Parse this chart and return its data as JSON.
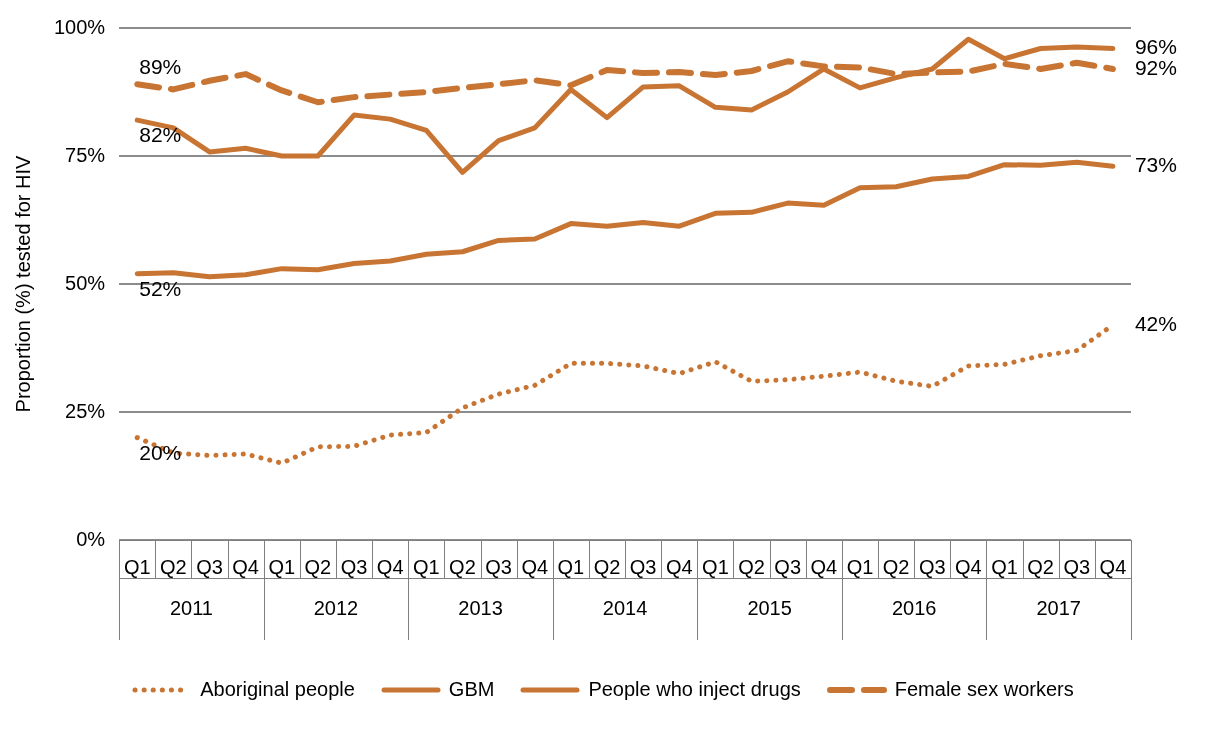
{
  "chart_data": {
    "type": "line",
    "ylabel": "Proportion (%) tested for HIV",
    "categories": [
      "Q1",
      "Q2",
      "Q3",
      "Q4",
      "Q1",
      "Q2",
      "Q3",
      "Q4",
      "Q1",
      "Q2",
      "Q3",
      "Q4",
      "Q1",
      "Q2",
      "Q3",
      "Q4",
      "Q1",
      "Q2",
      "Q3",
      "Q4",
      "Q1",
      "Q2",
      "Q3",
      "Q4",
      "Q1",
      "Q2",
      "Q3",
      "Q4"
    ],
    "annotations": [
      "2011",
      "2012",
      "2013",
      "2014",
      "2015",
      "2016",
      "2017"
    ],
    "ylim": [
      0,
      100
    ],
    "yticks": [
      {
        "value": 0,
        "label": "0%"
      },
      {
        "value": 25,
        "label": "25%"
      },
      {
        "value": 50,
        "label": "50%"
      },
      {
        "value": 75,
        "label": "75%"
      },
      {
        "value": 100,
        "label": "100%"
      }
    ],
    "grid": "y",
    "legend": "bottom",
    "marker": "none",
    "series": [
      {
        "name": "Aboriginal people",
        "color": "#c87533",
        "line_style": "dotted",
        "values": [
          20,
          17,
          16.5,
          16.8,
          15,
          18.2,
          18.3,
          20.5,
          21,
          25.8,
          28.5,
          30.2,
          34.5,
          34.5,
          34,
          32.5,
          34.8,
          31,
          31.3,
          32,
          32.8,
          31,
          30,
          34,
          34.3,
          36,
          37,
          42
        ],
        "value_labels": [
          "20%",
          null,
          null,
          null,
          null,
          null,
          null,
          null,
          null,
          null,
          null,
          null,
          null,
          null,
          null,
          null,
          null,
          null,
          null,
          null,
          null,
          null,
          null,
          null,
          null,
          null,
          null,
          "42%"
        ]
      },
      {
        "name": "GBM",
        "color": "#c87533",
        "line_style": "solid",
        "values": [
          52,
          52.2,
          51.4,
          51.8,
          53,
          52.8,
          54,
          54.5,
          55.8,
          56.3,
          58.5,
          58.8,
          61.8,
          61.3,
          62,
          61.3,
          63.8,
          64,
          65.8,
          65.4,
          68.8,
          69,
          70.5,
          71,
          73.3,
          73.2,
          73.8,
          73
        ],
        "value_labels": [
          "52%",
          null,
          null,
          null,
          null,
          null,
          null,
          null,
          null,
          null,
          null,
          null,
          null,
          null,
          null,
          null,
          null,
          null,
          null,
          null,
          null,
          null,
          null,
          null,
          null,
          null,
          null,
          "73%"
        ]
      },
      {
        "name": "People who inject drugs",
        "color": "#c87533",
        "line_style": "solid",
        "values": [
          82,
          80.5,
          75.8,
          76.5,
          75,
          75,
          83,
          82.2,
          80,
          71.8,
          78,
          80.5,
          88,
          82.5,
          88.5,
          88.7,
          84.5,
          84,
          87.5,
          92,
          88.3,
          90.3,
          92,
          97.8,
          94,
          96,
          96.3,
          96
        ],
        "value_labels": [
          "82%",
          null,
          null,
          null,
          null,
          null,
          null,
          null,
          null,
          null,
          null,
          null,
          null,
          null,
          null,
          null,
          null,
          null,
          null,
          null,
          null,
          null,
          null,
          null,
          null,
          null,
          null,
          "96%"
        ]
      },
      {
        "name": "Female sex workers",
        "color": "#c87533",
        "line_style": "dashed",
        "values": [
          89,
          88,
          89.7,
          91,
          87.8,
          85.5,
          86.5,
          87,
          87.5,
          88.3,
          89,
          89.8,
          88.8,
          91.8,
          91.2,
          91.4,
          90.8,
          91.6,
          93.5,
          92.5,
          92.3,
          91,
          91.3,
          91.5,
          93,
          92,
          93.2,
          92
        ],
        "value_labels": [
          "89%",
          null,
          null,
          null,
          null,
          null,
          null,
          null,
          null,
          null,
          null,
          null,
          null,
          null,
          null,
          null,
          null,
          null,
          null,
          null,
          null,
          null,
          null,
          null,
          null,
          null,
          null,
          "92%"
        ]
      }
    ]
  }
}
